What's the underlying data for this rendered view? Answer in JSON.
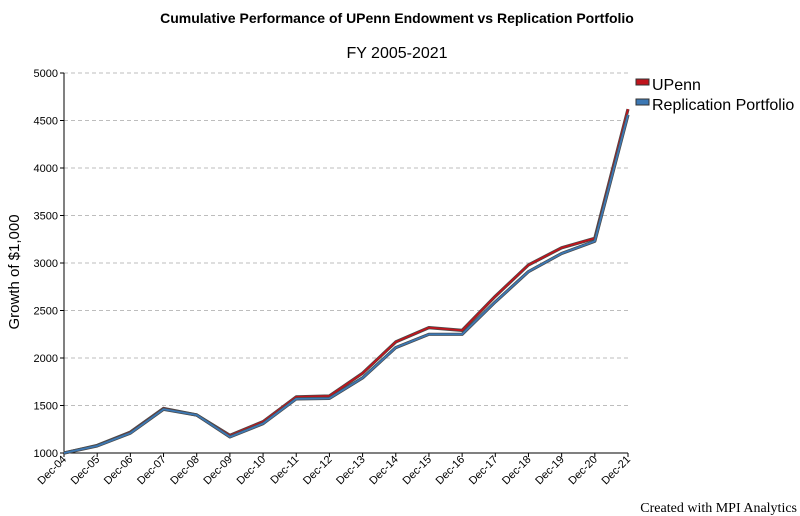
{
  "chart_data": {
    "type": "line",
    "title": "Cumulative Performance of UPenn Endowment vs Replication Portfolio",
    "subtitle": "FY 2005-2021",
    "ylabel": "Growth of $1,000",
    "xlabel": "",
    "ylim": [
      1000,
      5000
    ],
    "yticks": [
      1000,
      1500,
      2000,
      2500,
      3000,
      3500,
      4000,
      4500,
      5000
    ],
    "categories": [
      "Dec-04",
      "Dec-05",
      "Dec-06",
      "Dec-07",
      "Dec-08",
      "Dec-09",
      "Dec-10",
      "Dec-11",
      "Dec-12",
      "Dec-13",
      "Dec-14",
      "Dec-15",
      "Dec-16",
      "Dec-17",
      "Dec-18",
      "Dec-19",
      "Dec-20",
      "Dec-21"
    ],
    "series": [
      {
        "name": "UPenn",
        "color": "#c0141c",
        "values": [
          1000,
          1080,
          1220,
          1470,
          1400,
          1185,
          1330,
          1590,
          1600,
          1840,
          2170,
          2320,
          2290,
          2650,
          2980,
          3160,
          3260,
          4620
        ]
      },
      {
        "name": "Replication Portfolio",
        "color": "#3c78b4",
        "values": [
          1000,
          1075,
          1210,
          1460,
          1400,
          1170,
          1310,
          1570,
          1575,
          1790,
          2110,
          2250,
          2250,
          2590,
          2910,
          3100,
          3230,
          4560
        ]
      }
    ],
    "grid": true,
    "legend": "top-right"
  },
  "credit": "Created with MPI Analytics"
}
